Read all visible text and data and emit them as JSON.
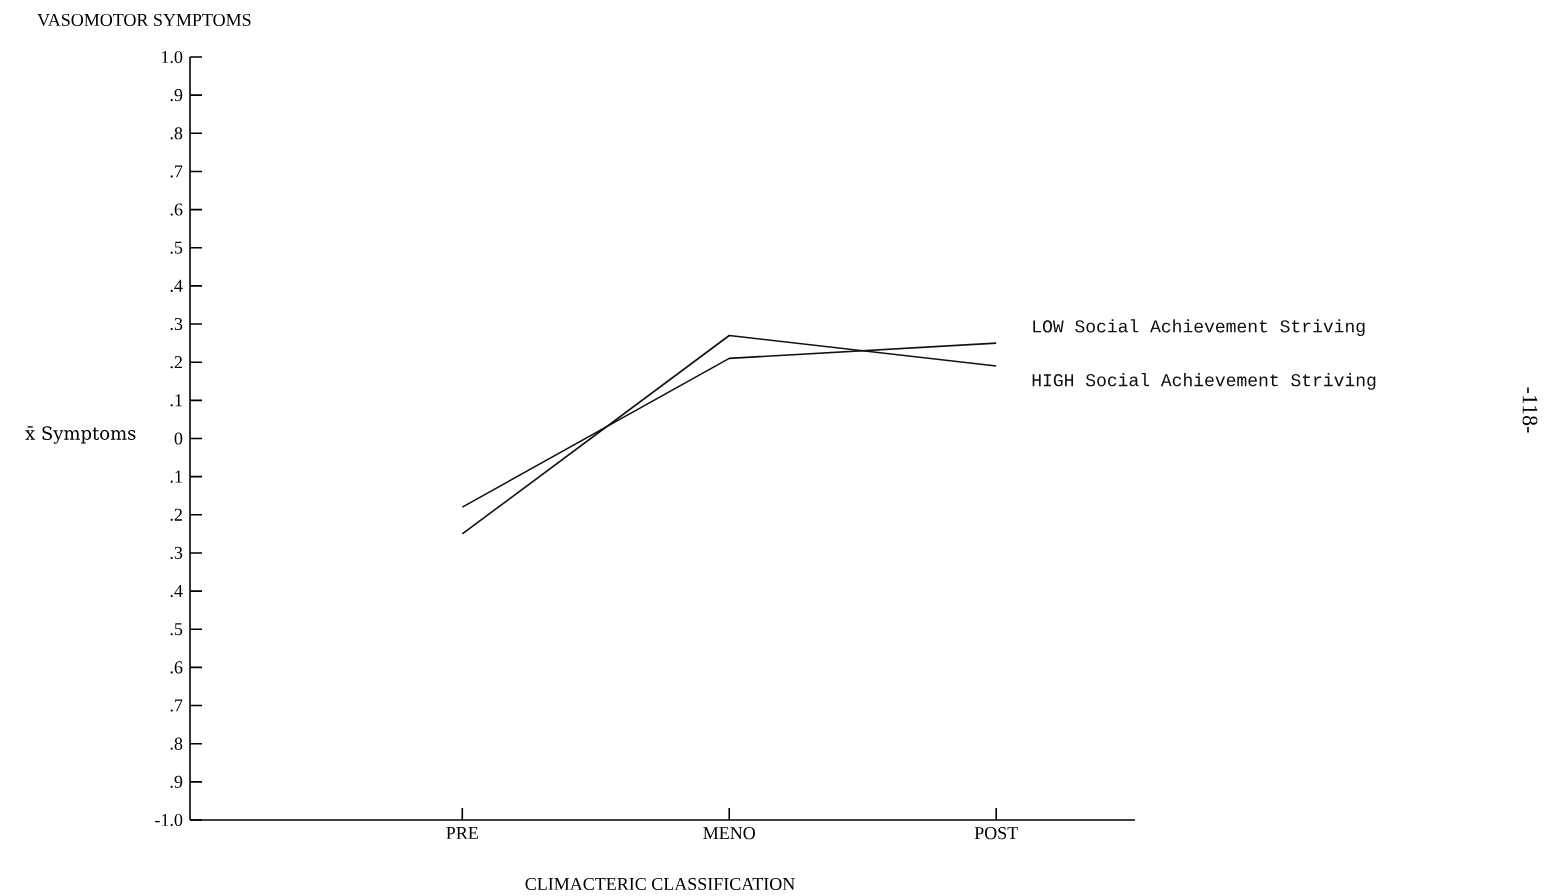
{
  "chart_data": {
    "type": "line",
    "title": "VASOMOTOR SYMPTOMS",
    "xlabel": "CLIMACTERIC CLASSIFICATION",
    "ylabel": "x̄ Symptoms",
    "categories": [
      "PRE",
      "MENO",
      "POST"
    ],
    "series": [
      {
        "name": "LOW Social Achievement Striving",
        "color": "#111111",
        "values": [
          -0.18,
          0.21,
          0.25
        ]
      },
      {
        "name": "HIGH Social Achievement Striving",
        "color": "#111111",
        "values": [
          -0.25,
          0.27,
          0.19
        ]
      }
    ],
    "ylim": [
      -1.0,
      1.0
    ],
    "yticks": [
      {
        "value": 1.0,
        "label": "1.0"
      },
      {
        "value": 0.9,
        "label": ".9"
      },
      {
        "value": 0.8,
        "label": ".8"
      },
      {
        "value": 0.7,
        "label": ".7"
      },
      {
        "value": 0.6,
        "label": ".6"
      },
      {
        "value": 0.5,
        "label": ".5"
      },
      {
        "value": 0.4,
        "label": ".4"
      },
      {
        "value": 0.3,
        "label": ".3"
      },
      {
        "value": 0.2,
        "label": ".2"
      },
      {
        "value": 0.1,
        "label": ".1"
      },
      0,
      {
        "value": -0.1,
        "label": ".1"
      },
      {
        "value": -0.2,
        "label": ".2"
      },
      {
        "value": -0.3,
        "label": ".3"
      },
      {
        "value": -0.4,
        "label": ".4"
      },
      {
        "value": -0.5,
        "label": ".5"
      },
      {
        "value": -0.6,
        "label": ".6"
      },
      {
        "value": -0.7,
        "label": ".7"
      },
      {
        "value": -0.8,
        "label": ".8"
      },
      {
        "value": -0.9,
        "label": ".9"
      },
      {
        "value": -1.0,
        "label": "-1.0"
      }
    ],
    "annotations": [
      "-118-"
    ]
  }
}
